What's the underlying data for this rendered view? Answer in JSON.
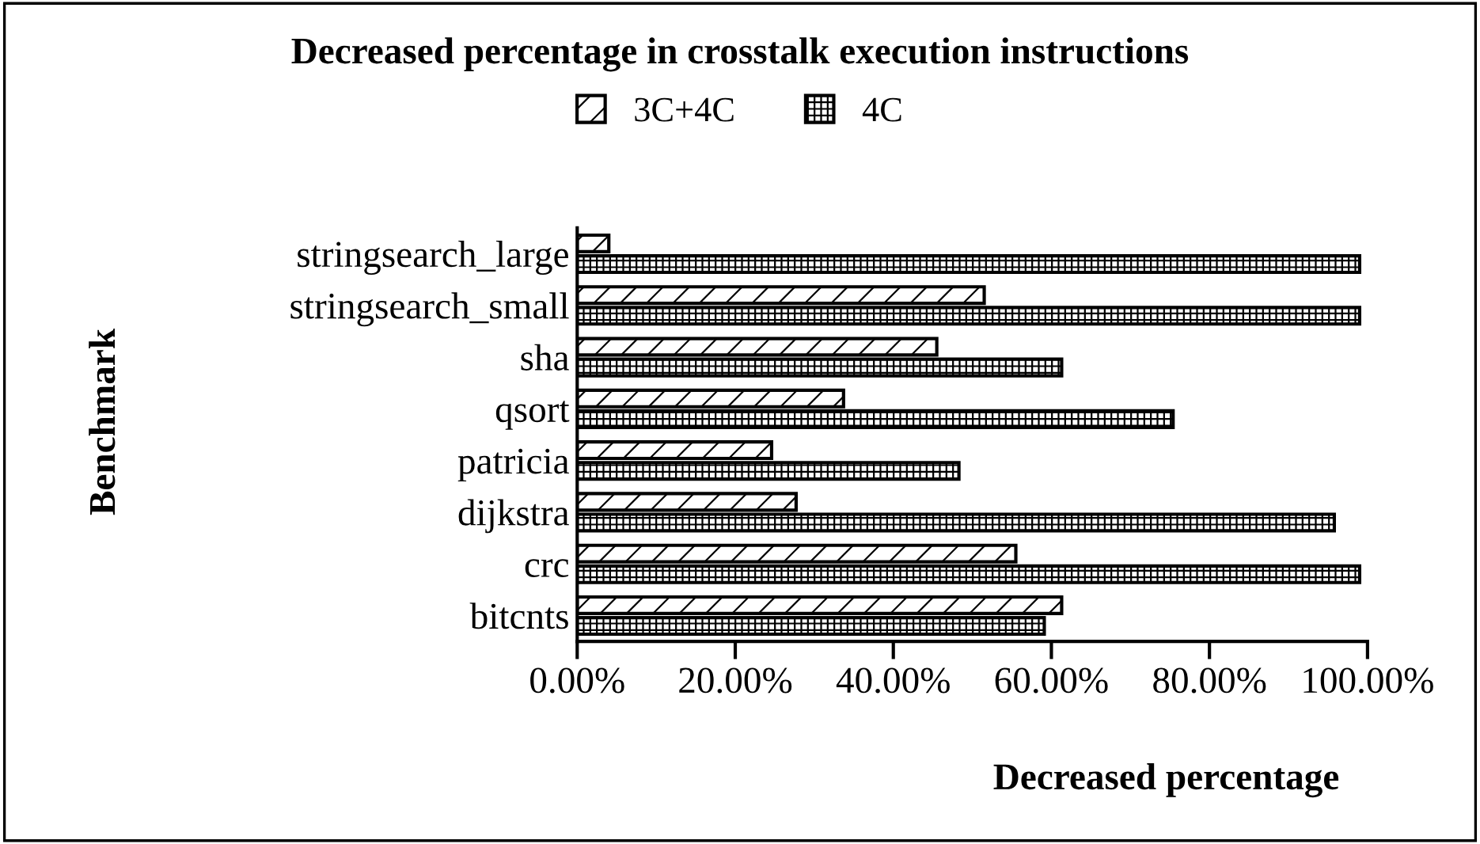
{
  "chart_data": {
    "type": "bar",
    "orientation": "horizontal",
    "title": "Decreased percentage in crosstalk execution instructions",
    "xlabel": "Decreased percentage",
    "ylabel": "Benchmark",
    "categories": [
      "stringsearch_large",
      "stringsearch_small",
      "sha",
      "qsort",
      "patricia",
      "dijkstra",
      "crc",
      "bitcnts"
    ],
    "series": [
      {
        "name": "3C+4C",
        "color": "#000000",
        "values": [
          4,
          51.5,
          45.5,
          33.7,
          24.6,
          27.7,
          55.5,
          61.3
        ]
      },
      {
        "name": "4C",
        "color": "#000000",
        "values": [
          99,
          99,
          61.3,
          75.4,
          48.3,
          95.8,
          99,
          59.1
        ]
      }
    ],
    "xlim": [
      0,
      100
    ],
    "xticks": [
      {
        "value": 0,
        "label": "0.00%"
      },
      {
        "value": 20,
        "label": "20.00%"
      },
      {
        "value": 40,
        "label": "40.00%"
      },
      {
        "value": 60,
        "label": "60.00%"
      },
      {
        "value": 80,
        "label": "80.00%"
      },
      {
        "value": 100,
        "label": "100.00%"
      }
    ],
    "legend": "top",
    "grid": false
  }
}
